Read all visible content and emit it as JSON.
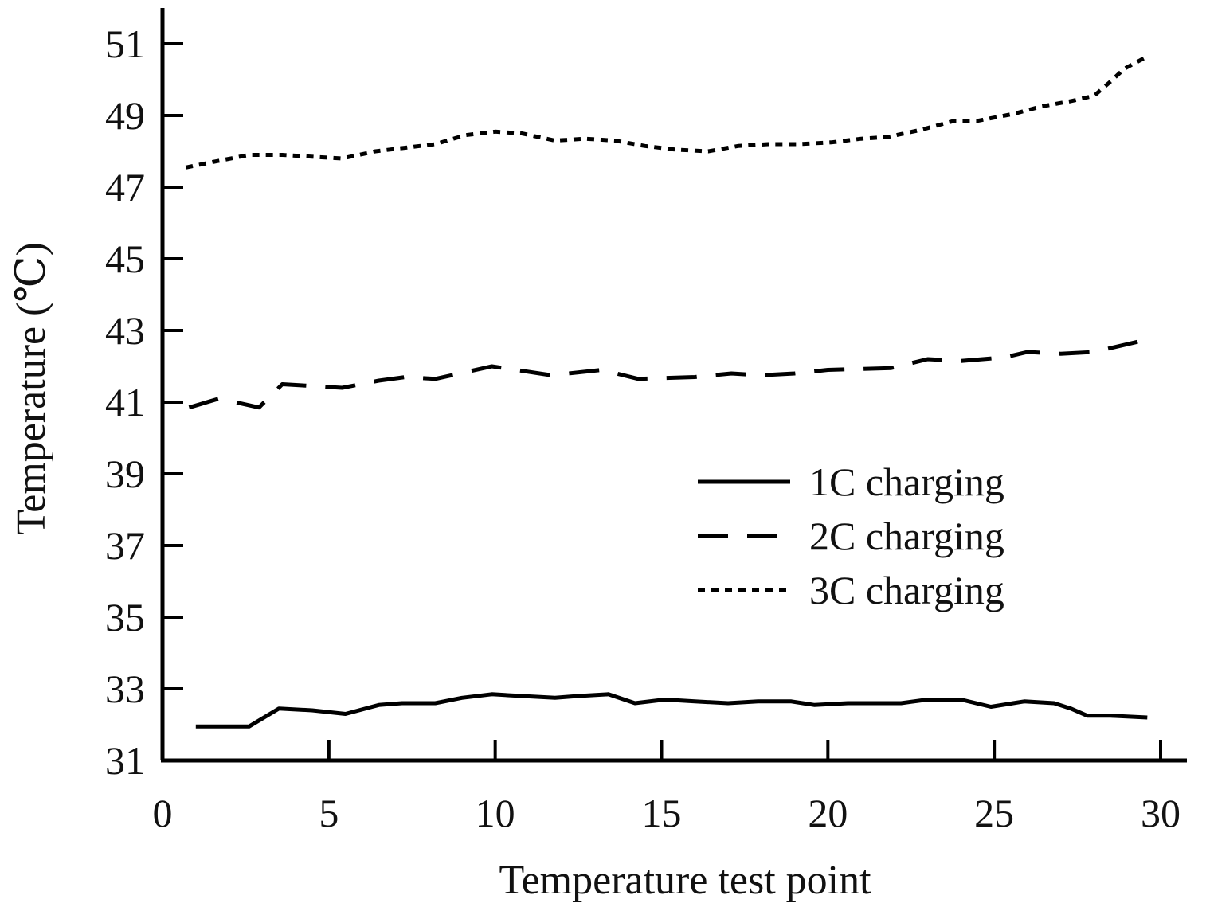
{
  "chart_data": {
    "type": "line",
    "title": "",
    "xlabel": "Temperature test point",
    "ylabel": "Temperature (℃)",
    "xlim": [
      0,
      30
    ],
    "ylim": [
      31,
      52
    ],
    "xticks": [
      0,
      5,
      10,
      15,
      20,
      25,
      30
    ],
    "xtick_labels": [
      "0",
      "5",
      "10",
      "15",
      "20",
      "25",
      "30"
    ],
    "yticks": [
      31,
      33,
      35,
      37,
      39,
      41,
      43,
      45,
      47,
      49,
      51
    ],
    "ytick_labels": [
      "31",
      "33",
      "35",
      "37",
      "39",
      "41",
      "43",
      "45",
      "47",
      "49",
      "51"
    ],
    "grid": false,
    "legend_position": "center-right",
    "series": [
      {
        "name": "1C charging",
        "style": "solid",
        "color": "#000000",
        "x": [
          1,
          1.5,
          2,
          2.6,
          3.5,
          4.5,
          5.5,
          6.5,
          7.2,
          8.2,
          9,
          9.9,
          10.8,
          11.8,
          12.5,
          13.4,
          14.2,
          15.1,
          16,
          17,
          17.9,
          18.9,
          19.6,
          20.6,
          21.4,
          22.2,
          23,
          24,
          24.9,
          25.9,
          26.8,
          27.3,
          27.8,
          28.5,
          29.6
        ],
        "values": [
          31.95,
          31.95,
          31.95,
          31.95,
          32.45,
          32.4,
          32.3,
          32.55,
          32.6,
          32.6,
          32.75,
          32.85,
          32.8,
          32.75,
          32.8,
          32.85,
          32.6,
          32.7,
          32.65,
          32.6,
          32.65,
          32.65,
          32.55,
          32.6,
          32.6,
          32.6,
          32.7,
          32.7,
          32.5,
          32.65,
          32.6,
          32.45,
          32.25,
          32.25,
          32.2
        ]
      },
      {
        "name": "2C charging",
        "style": "dashed",
        "color": "#000000",
        "x": [
          0.8,
          1.7,
          2.9,
          3.6,
          5.4,
          6.5,
          7.3,
          8.2,
          9.9,
          11.7,
          13.2,
          14.3,
          16,
          17.1,
          18,
          19,
          20,
          21.9,
          23,
          24,
          25.3,
          26,
          27,
          28,
          29.6
        ],
        "values": [
          40.85,
          41.1,
          40.85,
          41.5,
          41.4,
          41.6,
          41.7,
          41.65,
          42,
          41.75,
          41.9,
          41.65,
          41.7,
          41.8,
          41.75,
          41.8,
          41.9,
          41.95,
          42.2,
          42.15,
          42.25,
          42.4,
          42.35,
          42.4,
          42.75
        ]
      },
      {
        "name": "3C charging",
        "style": "dotted",
        "color": "#000000",
        "x": [
          0.7,
          1.5,
          2.6,
          3.6,
          5.4,
          6.4,
          7.3,
          8.2,
          9.1,
          10,
          10.8,
          11.8,
          12.7,
          13.6,
          14.5,
          15.4,
          16.4,
          17.3,
          18.2,
          19.1,
          20.1,
          21,
          21.8,
          22.8,
          23.8,
          24.5,
          25.6,
          26.4,
          27.3,
          28,
          28.5,
          28.9,
          29.6
        ],
        "values": [
          47.55,
          47.7,
          47.9,
          47.9,
          47.8,
          48,
          48.1,
          48.2,
          48.45,
          48.55,
          48.5,
          48.3,
          48.35,
          48.3,
          48.15,
          48.05,
          48,
          48.15,
          48.2,
          48.2,
          48.25,
          48.35,
          48.4,
          48.6,
          48.85,
          48.85,
          49.05,
          49.25,
          49.4,
          49.55,
          49.95,
          50.3,
          50.65
        ]
      }
    ]
  }
}
